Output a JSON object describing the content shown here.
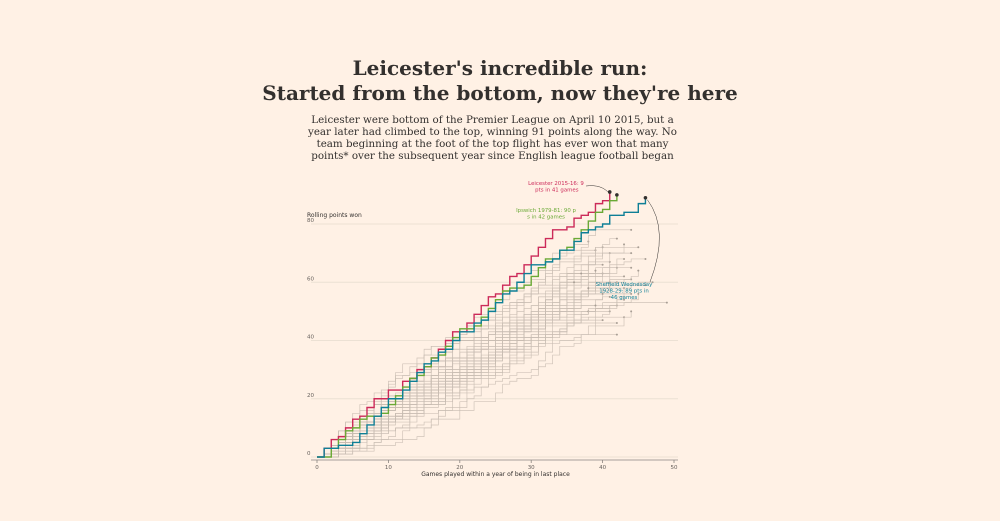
{
  "headline": {
    "line1": "Leicester's incredible run:",
    "line2": "Started from the bottom, now they're here"
  },
  "standfirst": "Leicester were bottom of the Premier League on April 10 2015, but a year later had climbed to the top, winning 91 points along the way. No team beginning at the foot of the top flight has ever won that many points* over the subsequent year since English league football began",
  "colors": {
    "background": "#fff1e5",
    "leicester": "#cc2a59",
    "ipswich": "#6aa936",
    "sheffield": "#0f7f96",
    "others": "#c8bcb1",
    "axis": "#8a8580",
    "grid": "#ece1d4"
  },
  "chart_data": {
    "type": "line",
    "ylabel": "Rolling points won",
    "xlabel": "Games played within a year of being in last place",
    "xlim": [
      0,
      50
    ],
    "ylim": [
      0,
      80
    ],
    "x_ticks": [
      0,
      10,
      20,
      30,
      40,
      50
    ],
    "y_ticks": [
      0,
      20,
      40,
      60,
      80
    ],
    "grid": "horizontal",
    "highlighted_series": [
      {
        "key": "leicester",
        "final_points": 91,
        "games": 41
      },
      {
        "key": "ipswich",
        "final_points": 90,
        "games": 42
      },
      {
        "key": "sheffield",
        "final_points": 89,
        "games": 46
      }
    ],
    "other_series_finals": [
      [
        38,
        74
      ],
      [
        39,
        71
      ],
      [
        40,
        72
      ],
      [
        40,
        66
      ],
      [
        40,
        63
      ],
      [
        41,
        70
      ],
      [
        41,
        67
      ],
      [
        41,
        60
      ],
      [
        41,
        55
      ],
      [
        41,
        50
      ],
      [
        42,
        75
      ],
      [
        42,
        65
      ],
      [
        42,
        60
      ],
      [
        42,
        52
      ],
      [
        42,
        46
      ],
      [
        42,
        42
      ],
      [
        43,
        73
      ],
      [
        43,
        68
      ],
      [
        43,
        62
      ],
      [
        43,
        58
      ],
      [
        43,
        54
      ],
      [
        43,
        48
      ],
      [
        44,
        78
      ],
      [
        44,
        70
      ],
      [
        44,
        65
      ],
      [
        44,
        61
      ],
      [
        44,
        56
      ],
      [
        44,
        50
      ],
      [
        45,
        72
      ],
      [
        45,
        64
      ],
      [
        46,
        59
      ],
      [
        46,
        68
      ],
      [
        38,
        58
      ],
      [
        39,
        64
      ],
      [
        40,
        56
      ],
      [
        39,
        52
      ],
      [
        37,
        63
      ],
      [
        38,
        50
      ],
      [
        36,
        60
      ],
      [
        40,
        47
      ],
      [
        45,
        56
      ],
      [
        47,
        60
      ],
      [
        49,
        53
      ]
    ],
    "annotations": {
      "leicester": "Leicester 2015-16: 91 pts in 41 games",
      "ipswich": "Ipswich 1979-81: 90 pts in 42 games",
      "sheffield": "Sheffield Wednesday 1928-29: 89 pts in 46 games"
    }
  }
}
